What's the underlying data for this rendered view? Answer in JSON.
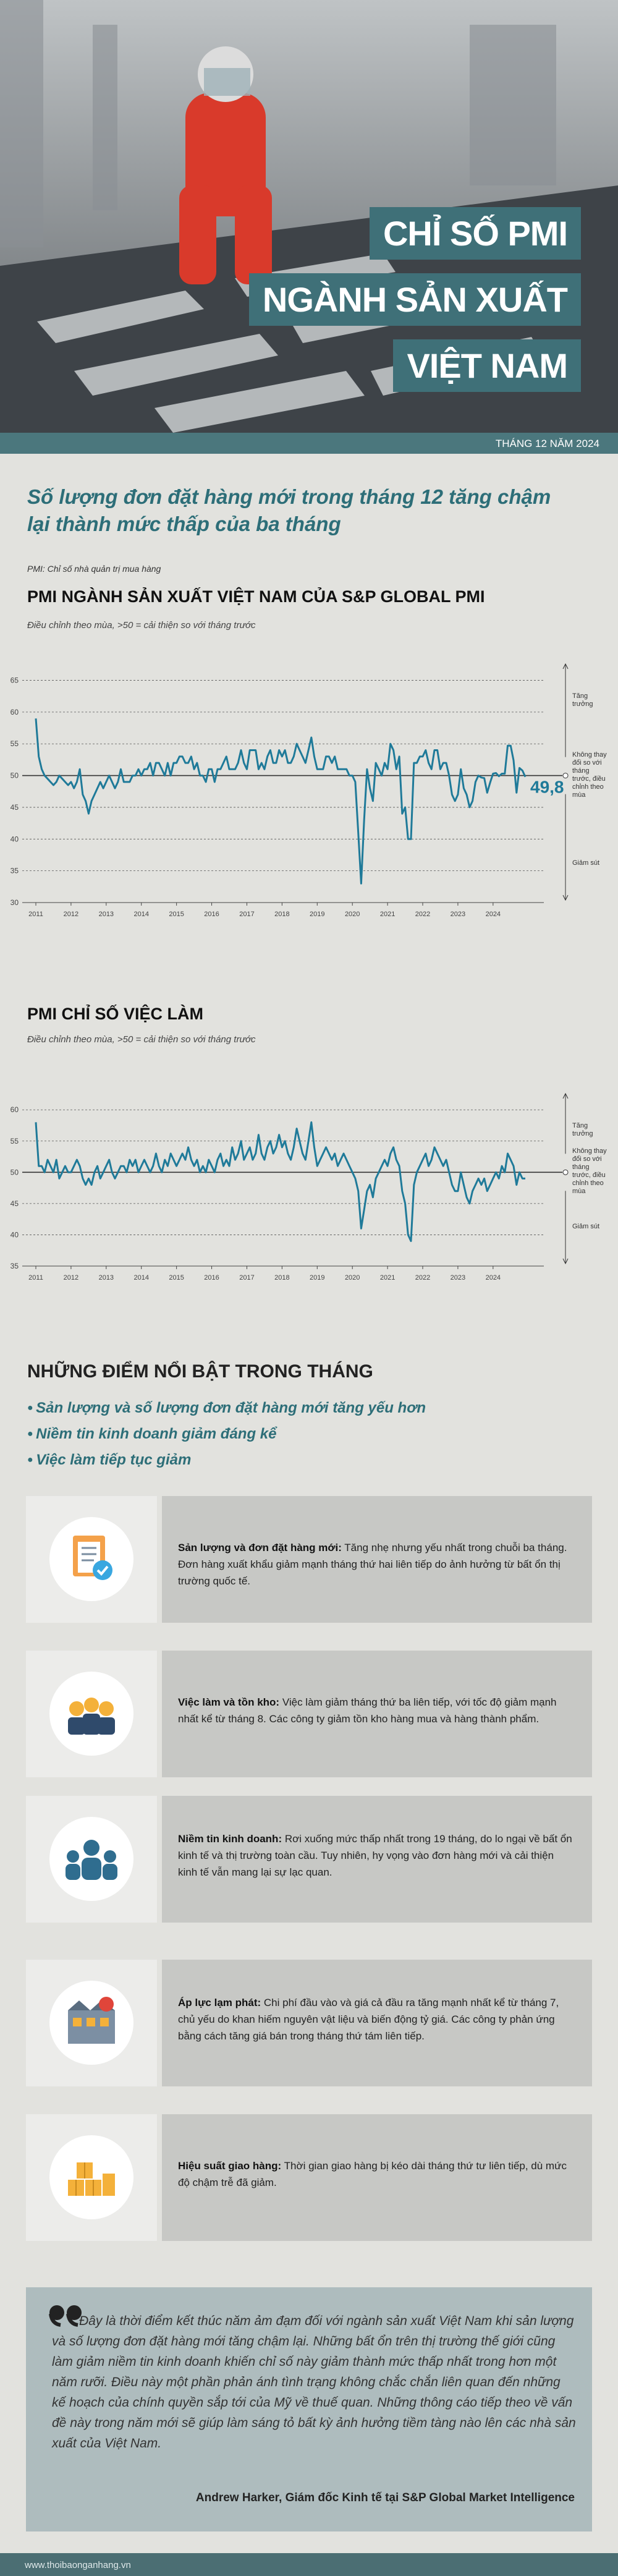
{
  "header": {
    "title_lines": [
      "CHỈ SỐ PMI",
      "NGÀNH SẢN XUẤT",
      "VIỆT NAM"
    ],
    "date": "THÁNG 12 NĂM 2024"
  },
  "headline": "Số lượng đơn đặt hàng mới trong tháng 12 tăng chậm lại thành mức thấp của ba tháng",
  "note": "PMI: Chỉ số nhà quản trị mua hàng",
  "chart_data": [
    {
      "type": "line",
      "title": "PMI NGÀNH SẢN XUẤT VIỆT NAM CỦA S&P GLOBAL PMI",
      "subtitle": "Điều chỉnh theo mùa, >50 = cải thiện so với tháng trước",
      "color": "#1f7a99",
      "reference": 50,
      "ylim": [
        30,
        67
      ],
      "yticks": [
        30,
        35,
        40,
        45,
        50,
        55,
        60,
        65
      ],
      "grid": true,
      "annotations": {
        "growth": "Tăng trưởng",
        "no_change": "Không thay đổi so với tháng trước, điều chỉnh theo mùa",
        "decline": "Giảm sút",
        "latest": "49,8"
      },
      "categories": [
        "2011",
        null,
        null,
        null,
        null,
        null,
        null,
        null,
        null,
        null,
        null,
        null,
        "2012",
        null,
        null,
        null,
        null,
        null,
        null,
        null,
        null,
        null,
        null,
        null,
        "2013",
        null,
        null,
        null,
        null,
        null,
        null,
        null,
        null,
        null,
        null,
        null,
        "2014",
        null,
        null,
        null,
        null,
        null,
        null,
        null,
        null,
        null,
        null,
        null,
        "2015",
        null,
        null,
        null,
        null,
        null,
        null,
        null,
        null,
        null,
        null,
        null,
        "2016",
        null,
        null,
        null,
        null,
        null,
        null,
        null,
        null,
        null,
        null,
        null,
        "2017",
        null,
        null,
        null,
        null,
        null,
        null,
        null,
        null,
        null,
        null,
        null,
        "2018",
        null,
        null,
        null,
        null,
        null,
        null,
        null,
        null,
        null,
        null,
        null,
        "2019",
        null,
        null,
        null,
        null,
        null,
        null,
        null,
        null,
        null,
        null,
        null,
        "2020",
        null,
        null,
        null,
        null,
        null,
        null,
        null,
        null,
        null,
        null,
        null,
        "2021",
        null,
        null,
        null,
        null,
        null,
        null,
        null,
        null,
        null,
        null,
        null,
        "2022",
        null,
        null,
        null,
        null,
        null,
        null,
        null,
        null,
        null,
        null,
        null,
        "2023",
        null,
        null,
        null,
        null,
        null,
        null,
        null,
        null,
        null,
        null,
        null,
        "2024",
        null,
        null,
        null,
        null,
        null,
        null,
        null,
        null,
        null,
        null,
        null
      ],
      "values": [
        59,
        53,
        51,
        50,
        49.5,
        49,
        48.5,
        49,
        50,
        49.5,
        49,
        48.5,
        49,
        48,
        49,
        51,
        47,
        46,
        44,
        46,
        47,
        48,
        49,
        48,
        49,
        50,
        49,
        48,
        49,
        51,
        49,
        49,
        49,
        50,
        50,
        51,
        50,
        51,
        51,
        52,
        50,
        52,
        52,
        51,
        50,
        52,
        50,
        52,
        52,
        53,
        53,
        52,
        52,
        53,
        51,
        52,
        50,
        50,
        49,
        51,
        51,
        49,
        51,
        51,
        52,
        53,
        51,
        51,
        51,
        52,
        54,
        52,
        51,
        54,
        54,
        54,
        51,
        52,
        51,
        53,
        54,
        52,
        52,
        54,
        53,
        54,
        52,
        52,
        53,
        55,
        54,
        53,
        52,
        54,
        56,
        53,
        51,
        51,
        51,
        53,
        53,
        52,
        53,
        51,
        51,
        51,
        51,
        50,
        50,
        49,
        41,
        33,
        43,
        51,
        48,
        46,
        52,
        51,
        50,
        52,
        51,
        55,
        54,
        51,
        53,
        44,
        45,
        40,
        40,
        52,
        52,
        53,
        53,
        54,
        52,
        51,
        54,
        54,
        51,
        52,
        52,
        50,
        47,
        46,
        47,
        51,
        48,
        47,
        45,
        46,
        49,
        50,
        49.7,
        49.6,
        47.3,
        48.9,
        50.3,
        50.4,
        49.9,
        50.3,
        50.3,
        54.7,
        54.7,
        52.4,
        47.3,
        51.2,
        50.8,
        49.8
      ]
    },
    {
      "type": "line",
      "title": "PMI CHỈ SỐ VIỆC LÀM",
      "subtitle": "Điều chỉnh theo mùa, >50 = cải thiện so với tháng trước",
      "color": "#1f7a99",
      "reference": 50,
      "ylim": [
        35,
        62
      ],
      "yticks": [
        35,
        40,
        45,
        50,
        55,
        60
      ],
      "grid": true,
      "annotations": {
        "growth": "Tăng trưởng",
        "no_change": "Không thay đổi so với tháng trước, điều chỉnh theo mùa",
        "decline": "Giảm sút"
      },
      "categories": [
        "2011",
        null,
        null,
        null,
        null,
        null,
        null,
        null,
        null,
        null,
        null,
        null,
        "2012",
        null,
        null,
        null,
        null,
        null,
        null,
        null,
        null,
        null,
        null,
        null,
        "2013",
        null,
        null,
        null,
        null,
        null,
        null,
        null,
        null,
        null,
        null,
        null,
        "2014",
        null,
        null,
        null,
        null,
        null,
        null,
        null,
        null,
        null,
        null,
        null,
        "2015",
        null,
        null,
        null,
        null,
        null,
        null,
        null,
        null,
        null,
        null,
        null,
        "2016",
        null,
        null,
        null,
        null,
        null,
        null,
        null,
        null,
        null,
        null,
        null,
        "2017",
        null,
        null,
        null,
        null,
        null,
        null,
        null,
        null,
        null,
        null,
        null,
        "2018",
        null,
        null,
        null,
        null,
        null,
        null,
        null,
        null,
        null,
        null,
        null,
        "2019",
        null,
        null,
        null,
        null,
        null,
        null,
        null,
        null,
        null,
        null,
        null,
        "2020",
        null,
        null,
        null,
        null,
        null,
        null,
        null,
        null,
        null,
        null,
        null,
        "2021",
        null,
        null,
        null,
        null,
        null,
        null,
        null,
        null,
        null,
        null,
        null,
        "2022",
        null,
        null,
        null,
        null,
        null,
        null,
        null,
        null,
        null,
        null,
        null,
        "2023",
        null,
        null,
        null,
        null,
        null,
        null,
        null,
        null,
        null,
        null,
        null,
        "2024",
        null,
        null,
        null,
        null,
        null,
        null,
        null,
        null,
        null,
        null,
        null
      ],
      "values": [
        58,
        51,
        51,
        50,
        52,
        51,
        50,
        52,
        49,
        50,
        51,
        50,
        50,
        51,
        52,
        51,
        49,
        48,
        49,
        48,
        50,
        51,
        49,
        50,
        51,
        52,
        50,
        49,
        50,
        51,
        51,
        50,
        52,
        51,
        52,
        50,
        51,
        52,
        51,
        50,
        51,
        53,
        51,
        50,
        52,
        51,
        53,
        52,
        51,
        52,
        53,
        52,
        54,
        52,
        51,
        52,
        50,
        51,
        50,
        52,
        51,
        50,
        52,
        53,
        51,
        52,
        51,
        54,
        52,
        53,
        55,
        52,
        53,
        54,
        52,
        53,
        56,
        53,
        52,
        54,
        55,
        53,
        54,
        56,
        54,
        55,
        53,
        52,
        54,
        57,
        55,
        53,
        52,
        55,
        58,
        54,
        51,
        52,
        53,
        54,
        53,
        52,
        53,
        51,
        52,
        53,
        52,
        51,
        50,
        49,
        47,
        41,
        44,
        47,
        48,
        46,
        49,
        50,
        51,
        52,
        51,
        53,
        54,
        52,
        51,
        47,
        45,
        40,
        39,
        48,
        50,
        51,
        52,
        53,
        51,
        52,
        54,
        53,
        52,
        51,
        52,
        50,
        48,
        47,
        47,
        50,
        48,
        46,
        45,
        47,
        48,
        49,
        48,
        49,
        47,
        48,
        49,
        50,
        49,
        51,
        50,
        53,
        52,
        51,
        48,
        50,
        49,
        49
      ]
    }
  ],
  "highlights": {
    "title": "NHỮNG ĐIỂM NỔI BẬT TRONG THÁNG",
    "items": [
      "Sản lượng và số lượng đơn đặt hàng mới tăng yếu hơn",
      "Niềm tin kinh doanh giảm đáng kể",
      "Việc làm tiếp tục giảm"
    ]
  },
  "cards": [
    {
      "title": "Sản lượng và đơn đặt hàng mới:",
      "text": "Tăng nhẹ nhưng yếu nhất trong chuỗi ba tháng. Đơn hàng xuất khẩu giảm mạnh tháng thứ hai liên tiếp do ảnh hưởng từ bất ổn thị trường quốc tế."
    },
    {
      "title": "Việc làm và tồn kho:",
      "text": "Việc làm giảm tháng thứ ba liên tiếp, với tốc độ giảm mạnh nhất kể từ tháng 8. Các công ty giảm tồn kho hàng mua và hàng thành phẩm."
    },
    {
      "title": "Niềm tin kinh doanh:",
      "text": "Rơi xuống mức thấp nhất trong 19 tháng, do lo ngại về bất ổn kinh tế và thị trường toàn cầu. Tuy nhiên, hy vọng vào đơn hàng mới và cải thiện kinh tế vẫn mang lại sự lạc quan."
    },
    {
      "title": "Áp lực lạm phát:",
      "text": "Chi phí đầu vào và giá cả đầu ra tăng mạnh nhất kể từ tháng 7, chủ yếu do khan hiếm nguyên vật liệu và biến động tỷ giá. Các công ty phản ứng bằng cách tăng giá bán trong tháng thứ tám liên tiếp."
    },
    {
      "title": "Hiệu suất giao hàng:",
      "text": "Thời gian giao hàng bị kéo dài tháng thứ tư liên tiếp, dù mức độ chậm trễ đã giảm."
    }
  ],
  "quote": {
    "text": "Đây là thời điểm kết thúc năm ảm đạm đối với ngành sản xuất Việt Nam khi sản lượng và số lượng đơn đặt hàng mới tăng chậm lại. Những bất ổn trên thị trường thế giới cũng làm giảm niềm tin kinh doanh khiến chỉ số này giảm thành mức thấp nhất trong hơn một năm rưỡi. Điều này một phần phản ánh tình trạng không chắc chắn liên quan đến những kế hoạch của chính quyền sắp tới của Mỹ về thuế quan. Những thông cáo tiếp theo về vấn đề này trong năm mới sẽ giúp làm sáng tỏ bất kỳ ảnh hưởng tiềm tàng nào lên các nhà sản xuất của Việt Nam.",
    "author": "Andrew Harker, Giám đốc Kinh tế tại S&P Global Market Intelligence"
  },
  "footer": "www.thoibaonganhang.vn"
}
